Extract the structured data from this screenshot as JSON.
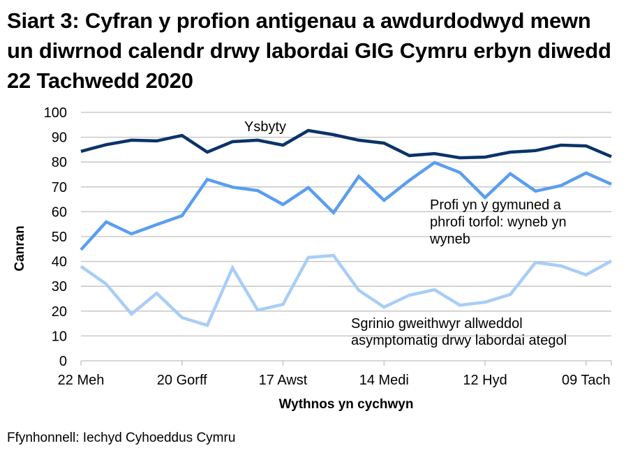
{
  "title": "Siart 3: Cyfran y profion antigenau a awdurdodwyd mewn un diwrnod calendr drwy labordai GIG Cymru erbyn diwedd 22 Tachwedd 2020",
  "source": "Ffynhonnell: Iechyd Cyhoeddus Cymru",
  "chart_data": {
    "type": "line",
    "title": "Siart 3: Cyfran y profion antigenau a awdurdodwyd mewn un diwrnod calendr drwy labordai GIG Cymru erbyn diwedd 22 Tachwedd 2020",
    "xlabel": "Wythnos yn cychwyn",
    "ylabel": "Canran",
    "ylim": [
      0,
      100
    ],
    "yticks": [
      0,
      10,
      20,
      30,
      40,
      50,
      60,
      70,
      80,
      90,
      100
    ],
    "grid": true,
    "legend": "inline labels",
    "x_tick_labels": [
      "22 Meh",
      "20 Gorff",
      "17 Awst",
      "14 Medi",
      "12 Hyd",
      "09 Tach"
    ],
    "x_tick_indices": [
      0,
      4,
      8,
      12,
      16,
      20
    ],
    "x": [
      "22 Meh",
      "29 Meh",
      "06 Gorff",
      "13 Gorff",
      "20 Gorff",
      "27 Gorff",
      "03 Awst",
      "10 Awst",
      "17 Awst",
      "24 Awst",
      "31 Awst",
      "07 Medi",
      "14 Medi",
      "21 Medi",
      "28 Medi",
      "05 Hyd",
      "12 Hyd",
      "19 Hyd",
      "26 Hyd",
      "02 Tach",
      "09 Tach",
      "16 Tach"
    ],
    "series": [
      {
        "name": "Ysbyty",
        "color": "#0b3368",
        "values": [
          84.3,
          87.0,
          88.8,
          88.5,
          90.7,
          84.0,
          88.2,
          88.8,
          86.8,
          92.7,
          91.0,
          88.8,
          87.6,
          82.6,
          83.4,
          81.7,
          82.0,
          84.0,
          84.6,
          86.8,
          86.5,
          82.2
        ]
      },
      {
        "name": "Profi yn y gymuned a phrofi torfol: wyneb yn wyneb",
        "color": "#5a9ef0",
        "values": [
          44.7,
          55.9,
          51.1,
          54.8,
          58.4,
          73.0,
          69.9,
          68.5,
          62.9,
          69.7,
          59.6,
          74.2,
          64.6,
          72.6,
          79.8,
          75.8,
          65.7,
          75.3,
          68.3,
          70.5,
          75.6,
          71.1
        ]
      },
      {
        "name": "Sgrinio gweithwyr allweddol asymptomatig drwy labordai ategol",
        "color": "#a8cdf7",
        "values": [
          38.0,
          30.9,
          18.8,
          27.2,
          17.4,
          14.3,
          37.4,
          20.4,
          22.7,
          41.6,
          42.4,
          28.4,
          21.6,
          26.4,
          28.6,
          22.4,
          23.6,
          26.7,
          39.6,
          38.2,
          34.6,
          40.2
        ]
      }
    ],
    "annotations": [
      {
        "text": "Ysbyty",
        "lines": [
          "Ysbyty"
        ]
      },
      {
        "text": "Profi yn y gymuned a phrofi torfol: wyneb yn wyneb",
        "lines": [
          "Profi yn y gymuned a",
          "phrofi torfol: wyneb yn",
          "wyneb"
        ]
      },
      {
        "text": "Sgrinio gweithwyr allweddol asymptomatig drwy labordai ategol",
        "lines": [
          "Sgrinio gweithwyr allweddol",
          "asymptomatig drwy labordai ategol"
        ]
      }
    ]
  }
}
